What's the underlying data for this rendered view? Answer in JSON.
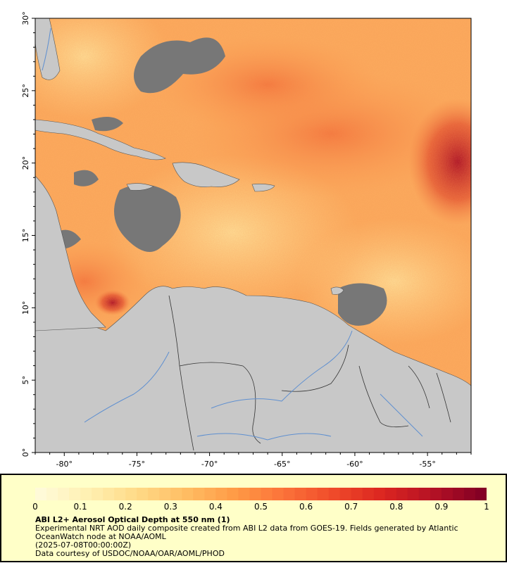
{
  "map": {
    "lon_range": [
      -82,
      -52
    ],
    "lat_range": [
      0,
      30
    ],
    "x_ticks": [
      {
        "value": -80,
        "label": "-80°"
      },
      {
        "value": -75,
        "label": "-75°"
      },
      {
        "value": -70,
        "label": "-70°"
      },
      {
        "value": -65,
        "label": "-65°"
      },
      {
        "value": -60,
        "label": "-60°"
      },
      {
        "value": -55,
        "label": "-55°"
      }
    ],
    "y_ticks": [
      {
        "value": 0,
        "label": "0°"
      },
      {
        "value": 5,
        "label": "5°"
      },
      {
        "value": 10,
        "label": "10°"
      },
      {
        "value": 15,
        "label": "15°"
      },
      {
        "value": 20,
        "label": "20°"
      },
      {
        "value": 25,
        "label": "25°"
      },
      {
        "value": 30,
        "label": "30°"
      }
    ],
    "colors": {
      "land": "#c8c8c8",
      "no_data": "#777777",
      "river": "#5e8fd0",
      "border": "#333333"
    }
  },
  "colorbar": {
    "min": 0,
    "max": 1,
    "stops": [
      "#fffad8",
      "#fff0b0",
      "#ffd986",
      "#ffbc62",
      "#ff9945",
      "#fb7139",
      "#ef4a2a",
      "#db2520",
      "#b51225",
      "#840024"
    ],
    "tick_labels": [
      "0",
      "0.1",
      "0.2",
      "0.3",
      "0.4",
      "0.5",
      "0.6",
      "0.7",
      "0.8",
      "0.9",
      "1"
    ]
  },
  "caption": {
    "title": "ABI L2+ Aerosol Optical Depth at 550 nm (1)",
    "line1": "Experimental NRT AOD daily composite created from ABI L2 data from GOES-19. Fields generated by Atlantic",
    "line2": "OceanWatch node at NOAA/AOML",
    "line3": "(2025-07-08T00:00:00Z)",
    "line4": "Data courtesy of USDOC/NOAA/OAR/AOML/PHOD"
  }
}
